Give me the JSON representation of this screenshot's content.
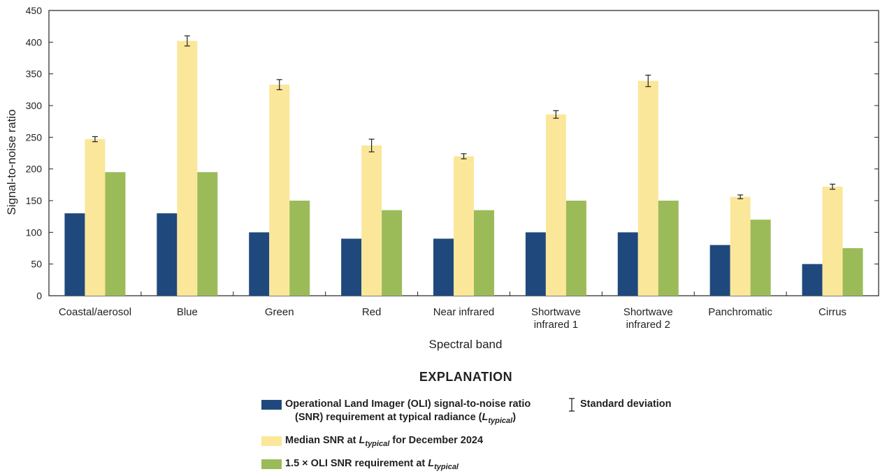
{
  "chart_data": {
    "type": "bar",
    "xlabel": "Spectral band",
    "ylabel": "Signal-to-noise ratio",
    "ylim": [
      0,
      450
    ],
    "yticks": [
      0,
      50,
      100,
      150,
      200,
      250,
      300,
      350,
      400,
      450
    ],
    "grid": false,
    "categories": [
      [
        "Coastal/aerosol"
      ],
      [
        "Blue"
      ],
      [
        "Green"
      ],
      [
        "Red"
      ],
      [
        "Near infrared"
      ],
      [
        "Shortwave",
        "infrared 1"
      ],
      [
        "Shortwave",
        "infrared 2"
      ],
      [
        "Panchromatic"
      ],
      [
        "Cirrus"
      ]
    ],
    "series": [
      {
        "key": "requirement",
        "color": "#1f497d",
        "values": [
          130,
          130,
          100,
          90,
          90,
          100,
          100,
          80,
          50
        ]
      },
      {
        "key": "median",
        "color": "#fbe79a",
        "values": [
          247,
          402,
          333,
          237,
          220,
          286,
          339,
          156,
          172
        ],
        "std": [
          4,
          8,
          8,
          10,
          4,
          6,
          9,
          3,
          4
        ]
      },
      {
        "key": "requirement_1_5x",
        "color": "#9bbb59",
        "values": [
          195,
          195,
          150,
          135,
          135,
          150,
          150,
          120,
          75
        ]
      }
    ]
  },
  "legend": {
    "title": "EXPLANATION",
    "items": [
      {
        "key": "requirement",
        "color": "#1f497d",
        "line1": "Operational Land Imager (OLI) signal-to-noise ratio",
        "line2_pre": "(SNR) requirement at typical radiance (",
        "l_symbol": "L",
        "l_subscript": "typical",
        "line2_post": ")"
      },
      {
        "key": "median",
        "color": "#fbe79a",
        "pre": "Median SNR at ",
        "l_symbol": "L",
        "l_subscript": "typical",
        "post": " for December 2024"
      },
      {
        "key": "requirement_1_5x",
        "color": "#9bbb59",
        "pre": "1.5 × OLI SNR requirement at ",
        "l_symbol": "L",
        "l_subscript": "typical",
        "post": ""
      }
    ],
    "std_label": "Standard deviation"
  }
}
